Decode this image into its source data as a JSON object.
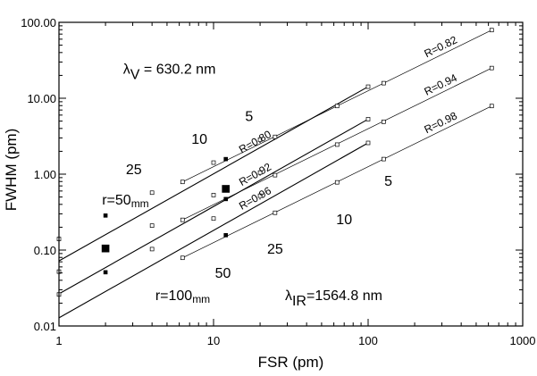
{
  "chart_data": {
    "type": "scatter",
    "xlabel": "FSR (pm)",
    "ylabel": "FWHM (pm)",
    "x_scale": "log",
    "y_scale": "log",
    "xlim": [
      1,
      1000
    ],
    "ylim": [
      0.01,
      100
    ],
    "x_ticks": [
      "1",
      "10",
      "100",
      "1000"
    ],
    "y_ticks": [
      "0.01",
      "0.10",
      "1.00",
      "10.00",
      "100.00"
    ],
    "grid": false,
    "series": [
      {
        "name": "R=0.80",
        "group": "IR",
        "weight": "heavy",
        "x": [
          1,
          100
        ],
        "y": [
          0.072,
          14.2
        ],
        "marker_x": [
          2,
          4,
          10,
          20,
          100
        ],
        "marker_fill": "open"
      },
      {
        "name": "R=0.92",
        "group": "IR",
        "weight": "heavy",
        "x": [
          1,
          100
        ],
        "y": [
          0.0265,
          5.3
        ],
        "marker_x": [
          2,
          4,
          10,
          20,
          100
        ],
        "marker_fill": "open"
      },
      {
        "name": "R=0.96",
        "group": "IR",
        "weight": "heavy",
        "x": [
          1,
          100
        ],
        "y": [
          0.0128,
          2.58
        ],
        "marker_x": [
          2,
          4,
          10,
          20,
          100
        ],
        "marker_fill": "open"
      },
      {
        "name": "R=0.82",
        "group": "V",
        "weight": "light",
        "x": [
          6.3,
          630
        ],
        "y": [
          0.79,
          79
        ],
        "marker_x": [
          6.3,
          25,
          63,
          630
        ],
        "marker_fill": "open"
      },
      {
        "name": "R=0.94",
        "group": "V",
        "weight": "light",
        "x": [
          6.3,
          630
        ],
        "y": [
          0.25,
          25
        ],
        "marker_x": [
          6.3,
          25,
          63,
          630
        ],
        "marker_fill": "open"
      },
      {
        "name": "R=0.98",
        "group": "V",
        "weight": "light",
        "x": [
          6.3,
          630
        ],
        "y": [
          0.079,
          7.9
        ],
        "marker_x": [
          6.3,
          25,
          63,
          630
        ],
        "marker_fill": "open"
      }
    ],
    "marker_points": [
      {
        "x": 1,
        "y": 0.14,
        "fill": "open"
      },
      {
        "x": 1,
        "y": 0.052,
        "fill": "open"
      },
      {
        "x": 1,
        "y": 0.026,
        "fill": "open"
      },
      {
        "x": 2,
        "y": 0.285,
        "fill": "filled"
      },
      {
        "x": 2,
        "y": 0.105,
        "fill": "filled",
        "size": "large"
      },
      {
        "x": 2,
        "y": 0.051,
        "fill": "filled"
      },
      {
        "x": 4,
        "y": 0.57,
        "fill": "open"
      },
      {
        "x": 4,
        "y": 0.21,
        "fill": "open"
      },
      {
        "x": 4,
        "y": 0.103,
        "fill": "open"
      },
      {
        "x": 10,
        "y": 1.42,
        "fill": "open"
      },
      {
        "x": 10,
        "y": 0.53,
        "fill": "open"
      },
      {
        "x": 10,
        "y": 0.26,
        "fill": "open"
      },
      {
        "x": 12,
        "y": 1.58,
        "fill": "filled"
      },
      {
        "x": 12,
        "y": 0.64,
        "fill": "filled",
        "size": "large"
      },
      {
        "x": 12,
        "y": 0.47,
        "fill": "filled"
      },
      {
        "x": 12,
        "y": 0.157,
        "fill": "filled"
      },
      {
        "x": 20,
        "y": 2.85,
        "fill": "open"
      },
      {
        "x": 20,
        "y": 1.05,
        "fill": "open"
      },
      {
        "x": 20,
        "y": 0.52,
        "fill": "open"
      },
      {
        "x": 6.3,
        "y": 0.79,
        "fill": "open"
      },
      {
        "x": 6.3,
        "y": 0.25,
        "fill": "open"
      },
      {
        "x": 6.3,
        "y": 0.079,
        "fill": "open"
      },
      {
        "x": 25,
        "y": 3.1,
        "fill": "open"
      },
      {
        "x": 25,
        "y": 0.97,
        "fill": "open"
      },
      {
        "x": 25,
        "y": 0.31,
        "fill": "open"
      },
      {
        "x": 63,
        "y": 7.9,
        "fill": "open"
      },
      {
        "x": 63,
        "y": 2.45,
        "fill": "open"
      },
      {
        "x": 63,
        "y": 0.78,
        "fill": "open"
      },
      {
        "x": 100,
        "y": 14.2,
        "fill": "open"
      },
      {
        "x": 100,
        "y": 5.3,
        "fill": "open"
      },
      {
        "x": 100,
        "y": 2.58,
        "fill": "open"
      },
      {
        "x": 126,
        "y": 15.8,
        "fill": "open"
      },
      {
        "x": 126,
        "y": 4.9,
        "fill": "open"
      },
      {
        "x": 126,
        "y": 1.58,
        "fill": "open"
      },
      {
        "x": 630,
        "y": 79,
        "fill": "open"
      },
      {
        "x": 630,
        "y": 25,
        "fill": "open"
      },
      {
        "x": 630,
        "y": 7.9,
        "fill": "open"
      }
    ],
    "annotations": [
      {
        "id": "r50",
        "text": "r=50",
        "sub": "mm",
        "x": 1.9,
        "y": 0.4,
        "sub_style": "small"
      },
      {
        "id": "r100",
        "text": "r=100",
        "sub": "mm",
        "x": 4.2,
        "y": 0.022,
        "sub_style": "small"
      },
      {
        "id": "lambda-v",
        "text": "λ",
        "sub": "V",
        "after": " = 630.2 nm",
        "x": 2.6,
        "y": 21
      },
      {
        "id": "lambda-ir",
        "text": "λ",
        "sub": "IR",
        "after": "=1564.8 nm",
        "x": 29,
        "y": 0.022
      },
      {
        "id": "ir-5",
        "text": "5",
        "x": 17,
        "y": 5.0
      },
      {
        "id": "ir-10",
        "text": "10",
        "x": 8.1,
        "y": 2.5
      },
      {
        "id": "ir-25",
        "text": "25",
        "x": 3.05,
        "y": 1.0
      },
      {
        "id": "v-5",
        "text": "5",
        "x": 135,
        "y": 0.7
      },
      {
        "id": "v-10",
        "text": "10",
        "x": 70,
        "y": 0.22
      },
      {
        "id": "v-25",
        "text": "25",
        "x": 25,
        "y": 0.09
      },
      {
        "id": "v-50",
        "text": "50",
        "x": 11.5,
        "y": 0.043
      }
    ]
  }
}
